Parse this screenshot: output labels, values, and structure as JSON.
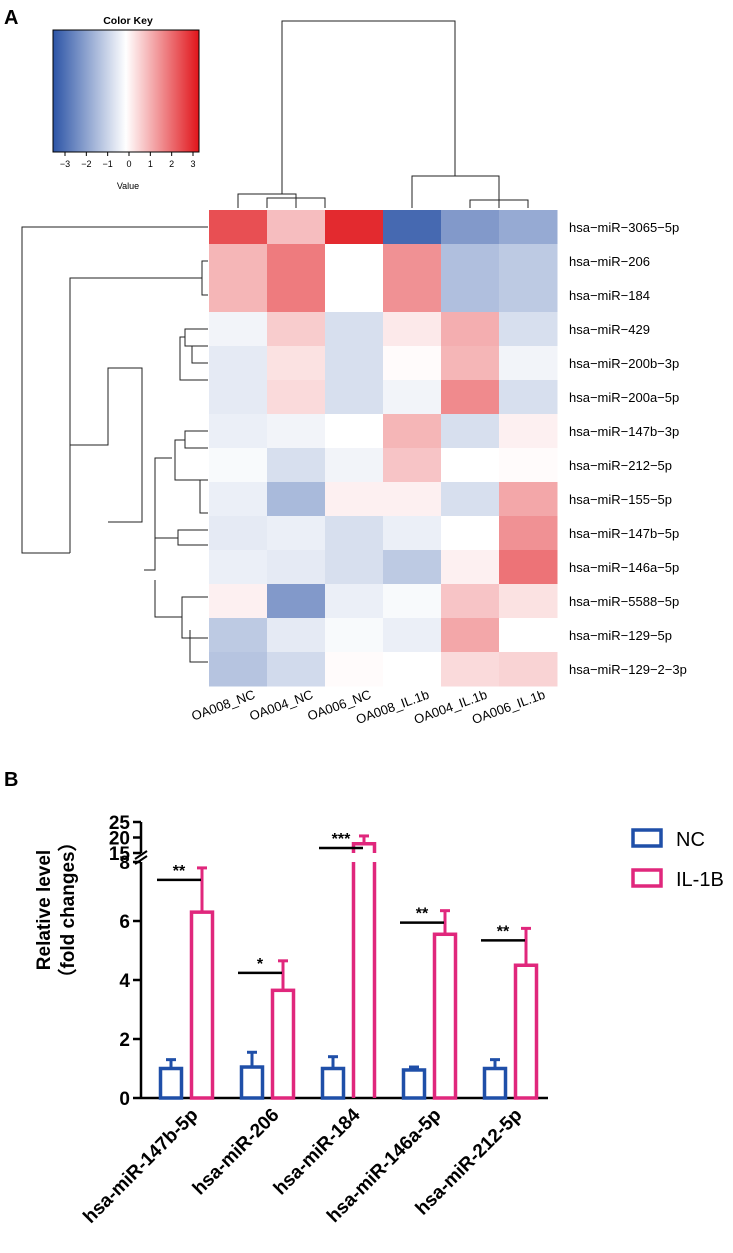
{
  "panels": {
    "a_label": "A",
    "b_label": "B"
  },
  "chart_data": [
    {
      "type": "heatmap",
      "title": "",
      "color_key": {
        "title": "Color Key",
        "xlabel": "Value",
        "ticks": [
          "−3",
          "−2",
          "−1",
          "0",
          "1",
          "2",
          "3"
        ],
        "range": [
          -3.2,
          3.2
        ],
        "low_color": "#2c54a6",
        "mid_color": "#ffffff",
        "high_color": "#e0141a"
      },
      "columns": [
        "OA008_NC",
        "OA004_NC",
        "OA006_NC",
        "OA008_IL.1b",
        "OA004_IL.1b",
        "OA006_IL.1b"
      ],
      "rows": [
        "hsa−miR−3065−5p",
        "hsa−miR−206",
        "hsa−miR−184",
        "hsa−miR−429",
        "hsa−miR−200b−3p",
        "hsa−miR−200a−5p",
        "hsa−miR−147b−3p",
        "hsa−miR−212−5p",
        "hsa−miR−155−5p",
        "hsa−miR−147b−5p",
        "hsa−miR−146a−5p",
        "hsa−miR−5588−5p",
        "hsa−miR−129−5p",
        "hsa−miR−129−2−3p"
      ],
      "values": [
        [
          2.4,
          0.9,
          2.9,
          -2.8,
          -1.9,
          -1.6
        ],
        [
          1.0,
          1.8,
          0.0,
          1.5,
          -1.2,
          -1.0
        ],
        [
          1.0,
          1.8,
          0.0,
          1.5,
          -1.2,
          -1.0
        ],
        [
          -0.2,
          0.7,
          -0.6,
          0.3,
          1.1,
          -0.6
        ],
        [
          -0.4,
          0.4,
          -0.6,
          0.05,
          1.0,
          -0.2
        ],
        [
          -0.4,
          0.5,
          -0.6,
          -0.2,
          1.6,
          -0.6
        ],
        [
          -0.3,
          -0.2,
          0.0,
          1.0,
          -0.6,
          0.2
        ],
        [
          -0.1,
          -0.6,
          -0.2,
          0.8,
          0.0,
          0.05
        ],
        [
          -0.3,
          -1.3,
          0.2,
          0.2,
          -0.6,
          1.2
        ],
        [
          -0.4,
          -0.3,
          -0.6,
          -0.3,
          0.0,
          1.5
        ],
        [
          -0.3,
          -0.4,
          -0.6,
          -1.0,
          0.2,
          1.9
        ],
        [
          0.2,
          -1.9,
          -0.3,
          -0.1,
          0.8,
          0.4
        ],
        [
          -1.0,
          -0.4,
          -0.1,
          -0.3,
          1.2,
          0.0
        ],
        [
          -1.1,
          -0.7,
          0.05,
          0.0,
          0.5,
          0.6
        ]
      ]
    },
    {
      "type": "bar",
      "title": "",
      "xlabel": "",
      "ylabel": "Relative level\n（fold changes）",
      "ylim_lower": [
        0,
        8
      ],
      "ylim_upper": [
        15,
        25
      ],
      "yticks": [
        0,
        2,
        4,
        6,
        8,
        15,
        20,
        25
      ],
      "categories": [
        "hsa-miR-147b-5p",
        "hsa-miR-206",
        "hsa-miR-184",
        "hsa-miR-146a-5p",
        "hsa-miR-212-5p"
      ],
      "series": [
        {
          "name": "NC",
          "color": "#1f4fa8",
          "values": [
            1.0,
            1.05,
            1.0,
            0.95,
            1.0
          ],
          "errors": [
            0.3,
            0.5,
            0.4,
            0.1,
            0.3
          ]
        },
        {
          "name": "IL-1B",
          "color": "#e0277c",
          "values": [
            6.3,
            3.65,
            18.0,
            5.55,
            4.5
          ],
          "errors": [
            1.5,
            1.0,
            2.5,
            0.8,
            1.25
          ]
        }
      ],
      "significance": [
        "**",
        "*",
        "***",
        "**",
        "**"
      ],
      "legend": "top-right"
    }
  ]
}
